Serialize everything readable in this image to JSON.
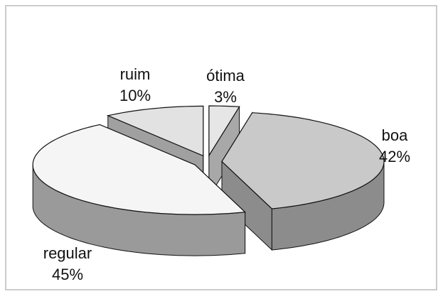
{
  "chart_data": {
    "type": "pie3d",
    "categories": [
      "ótima",
      "boa",
      "regular",
      "ruim"
    ],
    "values": [
      3,
      42,
      45,
      10
    ],
    "value_labels": [
      "3%",
      "42%",
      "45%",
      "10%"
    ],
    "colors": [
      "#e6e6e6",
      "#c9c9c9",
      "#f5f5f5",
      "#e2e2e2"
    ],
    "side_colors": [
      "#a8a8a8",
      "#8c8c8c",
      "#9a9a9a",
      "#a0a0a0"
    ]
  }
}
